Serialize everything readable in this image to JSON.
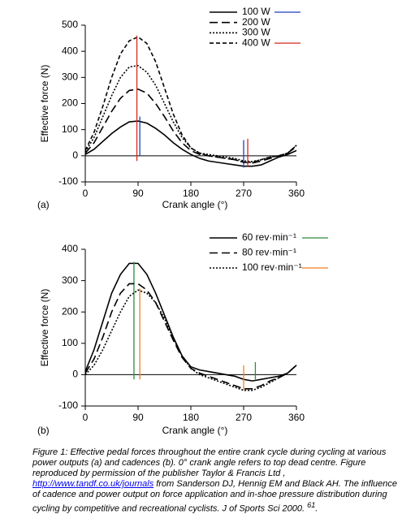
{
  "chart_data": [
    {
      "type": "line",
      "panel": "(a)",
      "x_label": "Crank angle (°)",
      "y_label": "Effective force (N)",
      "xlim": [
        0,
        360
      ],
      "xticks": [
        0,
        90,
        180,
        270,
        360
      ],
      "ylim": [
        -100,
        500
      ],
      "yticks": [
        -100,
        0,
        100,
        200,
        300,
        400,
        500
      ],
      "x": [
        0,
        15,
        30,
        45,
        60,
        75,
        90,
        105,
        120,
        135,
        150,
        165,
        180,
        195,
        210,
        225,
        240,
        255,
        270,
        285,
        300,
        315,
        330,
        345,
        360
      ],
      "series": [
        {
          "name": "100 W",
          "color": "#000000",
          "line_style": "solid",
          "marker_color": "#1f3fbf",
          "values": [
            5,
            25,
            55,
            85,
            110,
            130,
            133,
            125,
            105,
            80,
            50,
            25,
            5,
            -10,
            -20,
            -25,
            -30,
            -35,
            -40,
            -40,
            -35,
            -20,
            -5,
            5,
            20
          ],
          "markers": [
            {
              "x": 93,
              "y": [
                0,
                150
              ]
            },
            {
              "x": 270,
              "y": [
                -45,
                60
              ]
            }
          ]
        },
        {
          "name": "200 W",
          "color": "#000000",
          "line_style": "long-dash",
          "values": [
            10,
            50,
            110,
            170,
            220,
            250,
            255,
            240,
            200,
            150,
            95,
            50,
            20,
            5,
            0,
            -5,
            -10,
            -15,
            -25,
            -28,
            -20,
            -10,
            0,
            10,
            35
          ]
        },
        {
          "name": "300 W",
          "color": "#000000",
          "line_style": "dotted",
          "values": [
            15,
            70,
            150,
            230,
            300,
            340,
            345,
            320,
            270,
            200,
            130,
            70,
            30,
            10,
            5,
            0,
            -5,
            -10,
            -20,
            -22,
            -15,
            -5,
            0,
            10,
            40
          ]
        },
        {
          "name": "400 W",
          "color": "#000000",
          "line_style": "dashed",
          "marker_color": "#d42a1e",
          "values": [
            20,
            90,
            190,
            300,
            390,
            440,
            455,
            430,
            360,
            260,
            160,
            80,
            30,
            10,
            0,
            -5,
            -10,
            -15,
            -25,
            -25,
            -15,
            -5,
            0,
            10,
            40
          ],
          "markers": [
            {
              "x": 88,
              "y": [
                -20,
                460
              ]
            },
            {
              "x": 277,
              "y": [
                -40,
                65
              ]
            }
          ]
        }
      ]
    },
    {
      "type": "line",
      "panel": "(b)",
      "x_label": "Crank angle (°)",
      "y_label": "Effective force (N)",
      "xlim": [
        0,
        360
      ],
      "xticks": [
        0,
        90,
        180,
        270,
        360
      ],
      "ylim": [
        -100,
        400
      ],
      "yticks": [
        -100,
        0,
        100,
        200,
        300,
        400
      ],
      "x": [
        0,
        15,
        30,
        45,
        60,
        75,
        90,
        105,
        120,
        135,
        150,
        165,
        180,
        195,
        210,
        225,
        240,
        255,
        270,
        285,
        300,
        315,
        330,
        345,
        360
      ],
      "series": [
        {
          "name": "60 rev·min⁻¹",
          "color": "#000000",
          "line_style": "solid",
          "marker_color": "#2e8b3a",
          "values": [
            10,
            80,
            170,
            260,
            320,
            355,
            355,
            320,
            260,
            190,
            120,
            60,
            25,
            15,
            10,
            5,
            0,
            -5,
            -15,
            -20,
            -15,
            -10,
            -5,
            5,
            30
          ],
          "markers": [
            {
              "x": 83,
              "y": [
                -15,
                360
              ]
            },
            {
              "x": 290,
              "y": [
                -15,
                40
              ]
            }
          ]
        },
        {
          "name": "80 rev·min⁻¹",
          "color": "#000000",
          "line_style": "long-dash",
          "values": [
            5,
            50,
            120,
            200,
            260,
            290,
            290,
            270,
            230,
            170,
            110,
            55,
            20,
            5,
            -5,
            -15,
            -25,
            -35,
            -45,
            -45,
            -35,
            -20,
            -10,
            5,
            30
          ]
        },
        {
          "name": "100 rev·min⁻¹",
          "color": "#000000",
          "line_style": "dotted",
          "marker_color": "#f07f22",
          "values": [
            0,
            30,
            80,
            140,
            200,
            250,
            270,
            260,
            230,
            180,
            115,
            60,
            20,
            0,
            -10,
            -20,
            -30,
            -40,
            -50,
            -50,
            -40,
            -25,
            -10,
            5,
            30
          ],
          "markers": [
            {
              "x": 93,
              "y": [
                -15,
                275
              ]
            },
            {
              "x": 270,
              "y": [
                -50,
                30
              ]
            }
          ]
        }
      ]
    }
  ],
  "caption": {
    "before_link": "Figure 1: Effective pedal forces throughout the entire crank cycle during cycling at various power outputs (a) and cadences (b). 0° crank angle refers to top dead centre. Figure reproduced by permission of the publisher Taylor & Francis Ltd ,",
    "link": "http://www.tandf.co.uk/journals",
    "after_link": "from Sanderson DJ, Hennig EM and Black AH. The influence of cadence and power output on force application and in-shoe pressure distribution during cycling by competitive and recreational cyclists. J of Sports Sci 2000.",
    "reference": "61",
    "end": "."
  }
}
